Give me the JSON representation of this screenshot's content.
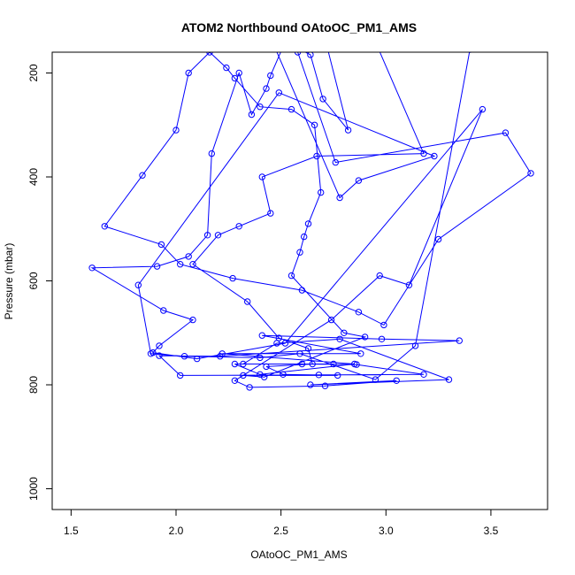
{
  "chart_data": {
    "type": "line",
    "title": "ATOM2 Northbound OAtoOC_PM1_AMS",
    "xlabel": "OAtoOC_PM1_AMS",
    "ylabel": "Pressure (mbar)",
    "xlim": [
      1.41,
      3.77
    ],
    "ylim": [
      1040,
      160
    ],
    "y_reversed": true,
    "x_ticks": [
      1.5,
      2.0,
      2.5,
      3.0,
      3.5
    ],
    "x_tick_labels": [
      "1.5",
      "2.0",
      "2.5",
      "3.0",
      "3.5"
    ],
    "y_ticks": [
      200,
      400,
      600,
      800,
      1000
    ],
    "y_tick_labels": [
      "200",
      "400",
      "600",
      "800",
      "1000"
    ],
    "grid": false,
    "series": [
      {
        "color": "#0000ff",
        "marker": "open-circle",
        "points": [
          [
            2.75,
            760
          ],
          [
            2.28,
            760
          ],
          [
            2.4,
            780
          ],
          [
            2.85,
            760
          ],
          [
            2.22,
            740
          ],
          [
            2.88,
            740
          ],
          [
            2.41,
            705
          ],
          [
            2.98,
            712
          ],
          [
            3.35,
            715
          ],
          [
            2.21,
            745
          ],
          [
            1.92,
            744
          ],
          [
            2.02,
            782
          ],
          [
            2.68,
            781
          ],
          [
            3.18,
            780
          ],
          [
            2.86,
            761
          ],
          [
            2.6,
            760
          ],
          [
            2.32,
            760
          ],
          [
            2.48,
            720
          ],
          [
            2.78,
            712
          ],
          [
            3.3,
            790
          ],
          [
            2.64,
            800
          ],
          [
            3.05,
            792
          ],
          [
            2.71,
            802
          ],
          [
            2.35,
            805
          ],
          [
            2.28,
            792
          ],
          [
            2.74,
            675
          ],
          [
            2.97,
            590
          ],
          [
            3.11,
            608
          ],
          [
            3.46,
            270
          ],
          [
            2.52,
            720
          ],
          [
            2.1,
            750
          ],
          [
            1.89,
            738
          ],
          [
            1.92,
            725
          ],
          [
            2.08,
            675
          ],
          [
            1.94,
            657
          ],
          [
            1.6,
            575
          ],
          [
            1.91,
            572
          ],
          [
            2.06,
            553
          ],
          [
            2.15,
            512
          ],
          [
            2.17,
            355
          ],
          [
            2.3,
            200
          ],
          [
            2.36,
            280
          ],
          [
            2.43,
            230
          ],
          [
            2.45,
            205
          ],
          [
            2.52,
            140
          ],
          [
            2.64,
            165
          ],
          [
            2.7,
            250
          ],
          [
            2.82,
            310
          ],
          [
            2.72,
            150
          ],
          [
            2.95,
            140
          ],
          [
            3.18,
            355
          ],
          [
            2.67,
            360
          ],
          [
            2.41,
            400
          ],
          [
            2.45,
            470
          ],
          [
            2.3,
            495
          ],
          [
            2.2,
            512
          ],
          [
            2.08,
            568
          ],
          [
            2.34,
            640
          ],
          [
            2.49,
            710
          ],
          [
            2.63,
            730
          ],
          [
            2.65,
            760
          ],
          [
            2.43,
            765
          ],
          [
            2.51,
            780
          ],
          [
            2.77,
            782
          ],
          [
            2.32,
            782
          ],
          [
            2.42,
            785
          ],
          [
            2.9,
            708
          ],
          [
            2.8,
            700
          ],
          [
            2.55,
            590
          ],
          [
            2.59,
            545
          ],
          [
            2.61,
            515
          ],
          [
            2.63,
            490
          ],
          [
            2.69,
            430
          ],
          [
            2.66,
            300
          ],
          [
            2.55,
            270
          ],
          [
            2.4,
            265
          ],
          [
            2.28,
            210
          ],
          [
            2.24,
            190
          ],
          [
            2.16,
            160
          ],
          [
            2.06,
            200
          ],
          [
            2.0,
            310
          ],
          [
            1.84,
            397
          ],
          [
            1.66,
            495
          ],
          [
            1.93,
            530
          ],
          [
            2.02,
            568
          ],
          [
            2.27,
            595
          ],
          [
            2.6,
            618
          ],
          [
            2.87,
            660
          ],
          [
            2.99,
            685
          ],
          [
            3.25,
            520
          ],
          [
            3.69,
            393
          ],
          [
            3.57,
            315
          ],
          [
            2.76,
            372
          ],
          [
            2.58,
            160
          ],
          [
            2.47,
            150
          ],
          [
            2.78,
            440
          ],
          [
            2.87,
            407
          ],
          [
            3.23,
            360
          ],
          [
            2.49,
            238
          ],
          [
            1.82,
            608
          ],
          [
            1.88,
            740
          ],
          [
            2.04,
            745
          ],
          [
            2.4,
            748
          ],
          [
            2.59,
            740
          ],
          [
            2.95,
            790
          ],
          [
            3.14,
            725
          ],
          [
            3.4,
            155
          ]
        ]
      }
    ]
  }
}
